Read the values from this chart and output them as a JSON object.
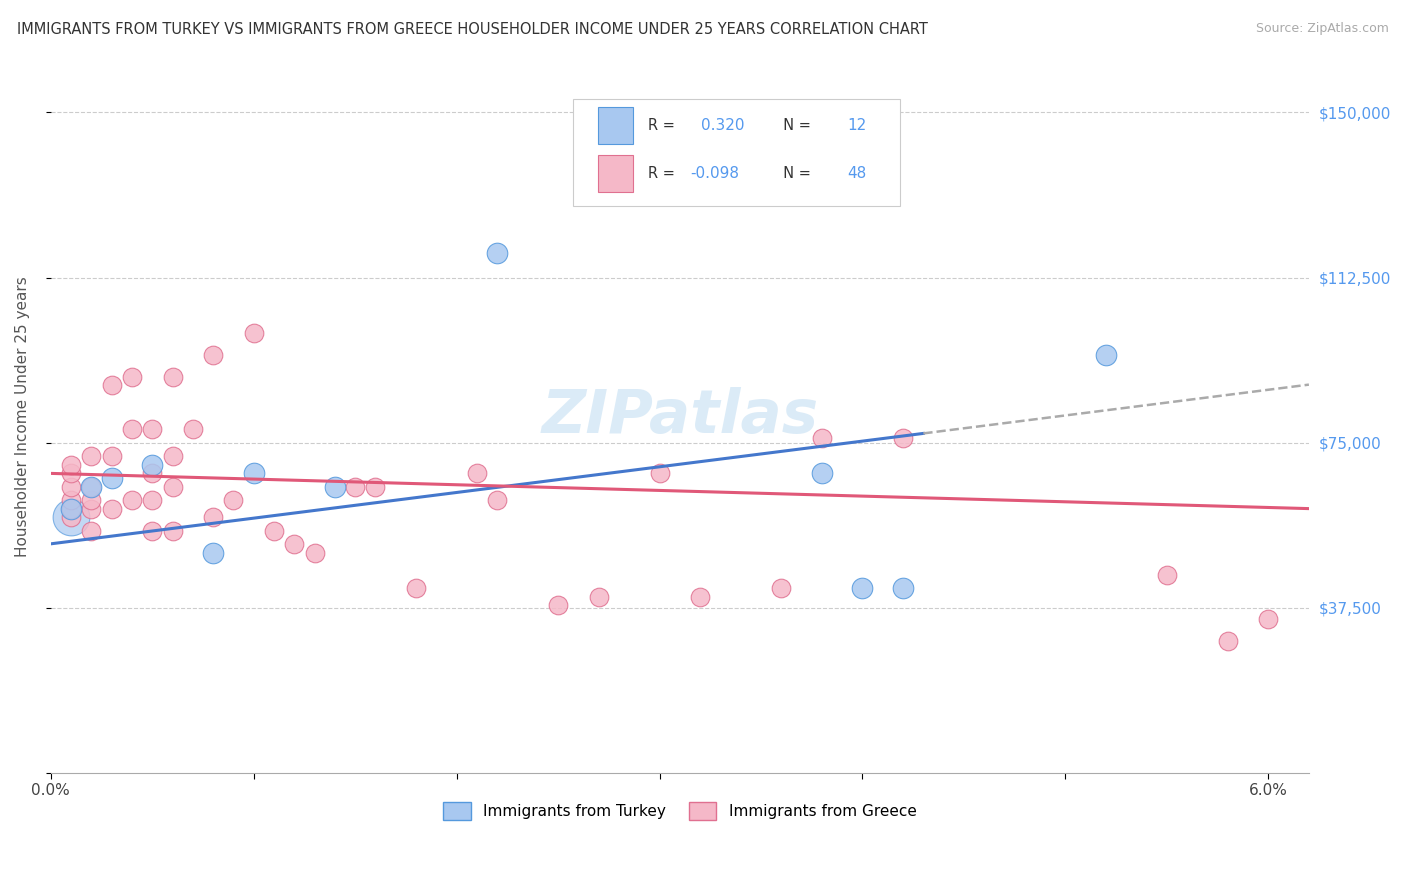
{
  "title": "IMMIGRANTS FROM TURKEY VS IMMIGRANTS FROM GREECE HOUSEHOLDER INCOME UNDER 25 YEARS CORRELATION CHART",
  "source": "Source: ZipAtlas.com",
  "ylabel": "Householder Income Under 25 years",
  "legend_turkey": "Immigrants from Turkey",
  "legend_greece": "Immigrants from Greece",
  "R_turkey": 0.32,
  "N_turkey": 12,
  "R_greece": -0.098,
  "N_greece": 48,
  "color_turkey_fill": "#a8c8f0",
  "color_turkey_edge": "#5599dd",
  "color_greece_fill": "#f5b8c8",
  "color_greece_edge": "#e07090",
  "color_turkey_line": "#4477cc",
  "color_greece_line": "#e05878",
  "color_right_labels": "#5599ee",
  "xlim": [
    0.0,
    0.062
  ],
  "ylim": [
    0,
    162000
  ],
  "turkey_x": [
    0.001,
    0.002,
    0.003,
    0.005,
    0.008,
    0.01,
    0.014,
    0.022,
    0.038,
    0.04,
    0.042,
    0.052
  ],
  "turkey_y": [
    60000,
    65000,
    67000,
    70000,
    50000,
    68000,
    65000,
    118000,
    68000,
    42000,
    42000,
    95000
  ],
  "greece_x": [
    0.001,
    0.001,
    0.001,
    0.001,
    0.001,
    0.001,
    0.002,
    0.002,
    0.002,
    0.002,
    0.002,
    0.003,
    0.003,
    0.003,
    0.004,
    0.004,
    0.004,
    0.005,
    0.005,
    0.005,
    0.005,
    0.006,
    0.006,
    0.006,
    0.006,
    0.007,
    0.008,
    0.008,
    0.009,
    0.01,
    0.011,
    0.012,
    0.013,
    0.015,
    0.016,
    0.018,
    0.021,
    0.022,
    0.025,
    0.027,
    0.03,
    0.032,
    0.036,
    0.038,
    0.042,
    0.055,
    0.058,
    0.06
  ],
  "greece_y": [
    58000,
    60000,
    62000,
    65000,
    68000,
    70000,
    55000,
    60000,
    62000,
    65000,
    72000,
    60000,
    72000,
    88000,
    62000,
    78000,
    90000,
    55000,
    62000,
    68000,
    78000,
    55000,
    65000,
    72000,
    90000,
    78000,
    58000,
    95000,
    62000,
    100000,
    55000,
    52000,
    50000,
    65000,
    65000,
    42000,
    68000,
    62000,
    38000,
    40000,
    68000,
    40000,
    42000,
    76000,
    76000,
    45000,
    30000,
    35000
  ]
}
